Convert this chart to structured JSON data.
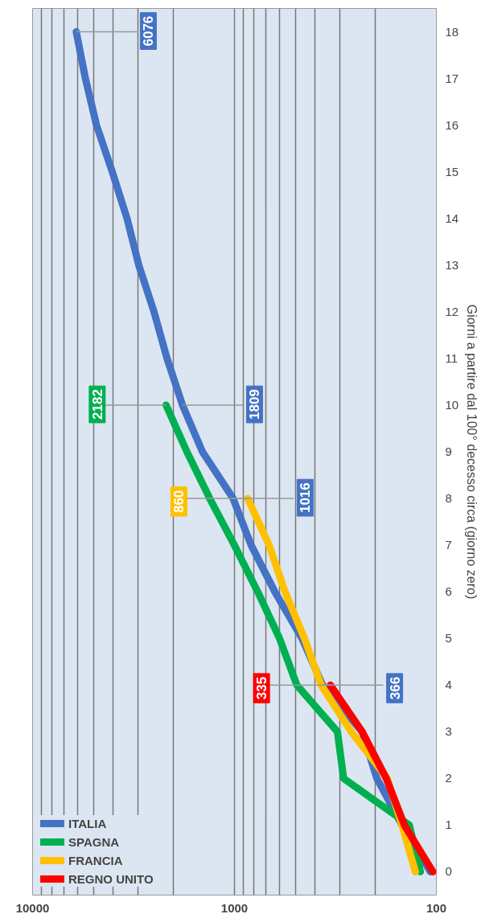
{
  "chart_data": {
    "type": "line",
    "ylabel": "Giorni a partire dal 100° decesso circa (giorno zero)",
    "series": [
      {
        "name": "ITALIA",
        "color": "#4472c4",
        "x": [
          107,
          148,
          197,
          233,
          366,
          463,
          631,
          827,
          1016,
          1441,
          1809,
          2158,
          2503,
          2978,
          3405,
          4032,
          4825,
          5476,
          6076
        ],
        "values": [
          0,
          1,
          2,
          3,
          4,
          5,
          6,
          7,
          8,
          9,
          10,
          11,
          12,
          13,
          14,
          15,
          16,
          17,
          18
        ]
      },
      {
        "name": "SPAGNA",
        "color": "#00b050",
        "x": [
          120,
          136,
          288,
          309,
          491,
          598,
          767,
          1002,
          1326,
          1720,
          2182
        ],
        "values": [
          0,
          1,
          2,
          3,
          4,
          5,
          6,
          7,
          8,
          9,
          10
        ]
      },
      {
        "name": "FRANCIA",
        "color": "#ffc000",
        "x": [
          127,
          148,
          175,
          264,
          372,
          450,
          562,
          674,
          860
        ],
        "values": [
          0,
          1,
          2,
          3,
          4,
          5,
          6,
          7,
          8
        ]
      },
      {
        "name": "REGNO UNITO",
        "color": "#ff0000",
        "x": [
          104,
          144,
          177,
          233,
          335
        ],
        "values": [
          0,
          1,
          2,
          3,
          4
        ]
      }
    ],
    "annotations": [
      {
        "text": "366",
        "x": 366,
        "y": 4
      },
      {
        "text": "1016",
        "x": 1016,
        "y": 8
      },
      {
        "text": "1809",
        "x": 1809,
        "y": 10
      },
      {
        "text": "6076",
        "x": 6076,
        "y": 18
      },
      {
        "text": "2182",
        "x": 2182,
        "y": 10
      },
      {
        "text": "860",
        "x": 860,
        "y": 8
      },
      {
        "text": "335",
        "x": 335,
        "y": 4
      }
    ],
    "xlim": [
      10000,
      100
    ],
    "xticks": [
      100,
      1000,
      10000
    ],
    "log": "x",
    "ylim": [
      -0.5,
      18.5
    ],
    "yticks": [
      0,
      1,
      2,
      3,
      4,
      5,
      6,
      7,
      8,
      9,
      10,
      11,
      12,
      13,
      14,
      15,
      16,
      17,
      18
    ],
    "grid": "x",
    "legend": "bottom left",
    "marker": "none",
    "line_style": "solid"
  }
}
